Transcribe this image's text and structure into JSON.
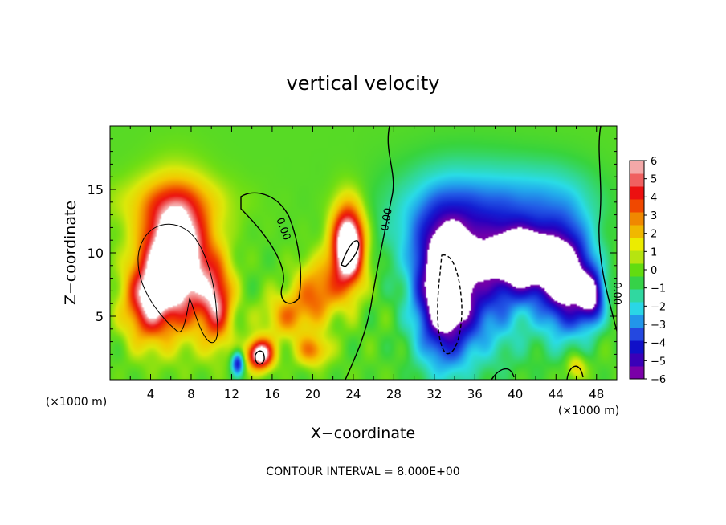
{
  "chart_data": {
    "type": "heatmap",
    "title": "vertical velocity",
    "xlabel": "X−coordinate",
    "ylabel": "Z−coordinate",
    "x_unit_label_left": "(×1000 m)",
    "x_unit_label_right": "(×1000 m)",
    "footer": "CONTOUR INTERVAL = 8.000E+00",
    "xlim": [
      0,
      50
    ],
    "ylim": [
      0,
      20
    ],
    "x_ticks": [
      4,
      8,
      12,
      16,
      20,
      24,
      28,
      32,
      36,
      40,
      44,
      48
    ],
    "y_ticks": [
      5,
      10,
      15
    ],
    "colorbar": {
      "min": -6,
      "max": 6,
      "ticks": [
        6,
        5,
        4,
        3,
        2,
        1,
        0,
        -1,
        -2,
        -3,
        -4,
        -5,
        -6
      ],
      "tick_labels": [
        "6",
        "5",
        "4",
        "3",
        "2",
        "1",
        "0",
        "−1",
        "−2",
        "−3",
        "−4",
        "−5",
        "−6"
      ]
    },
    "contour_labels": [
      {
        "text": "0.00",
        "x": 16.8,
        "z": 11.8
      },
      {
        "text": "0.00",
        "x": 27.6,
        "z": 12.6
      },
      {
        "text": "0.00",
        "x": 49.7,
        "z": 6.8
      }
    ],
    "contour_interval": 8.0,
    "features": [
      {
        "kind": "updraft",
        "center_x": 6.5,
        "center_z": 9.5,
        "peak": 6
      },
      {
        "kind": "updraft",
        "center_x": 23.5,
        "center_z": 10.5,
        "peak": 6
      },
      {
        "kind": "updraft",
        "center_x": 14.8,
        "center_z": 2.0,
        "peak": 6
      },
      {
        "kind": "downdraft",
        "center_x": 33.0,
        "center_z": 7.0,
        "peak": -6
      },
      {
        "kind": "downdraft",
        "center_x": 41.0,
        "center_z": 9.5,
        "peak": -6
      },
      {
        "kind": "downdraft",
        "center_x": 45.0,
        "center_z": 8.0,
        "peak": -6
      }
    ]
  }
}
